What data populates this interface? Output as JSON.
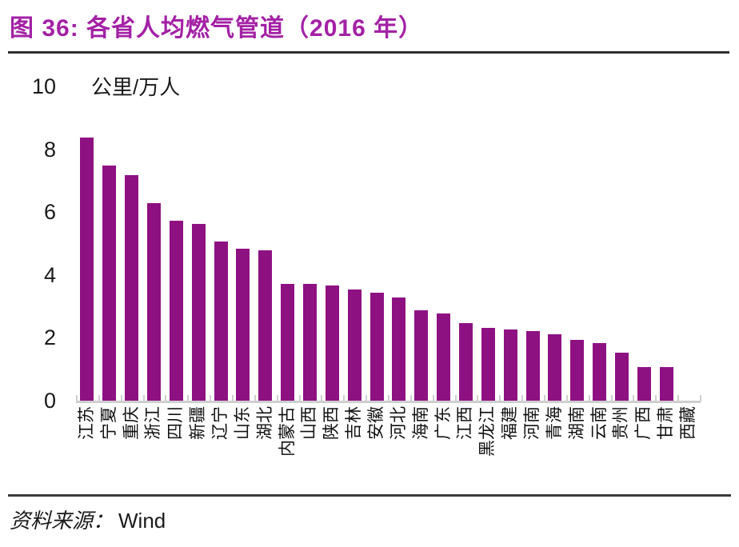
{
  "figure": {
    "title": "图 36:  各省人均燃气管道（2016 年）",
    "title_color": "#a321a5",
    "source_prefix": "资料来源：",
    "source_name": "Wind"
  },
  "chart_data": {
    "type": "bar",
    "title": "各省人均燃气管道（2016 年）",
    "unit_label": "公里/万人",
    "xlabel": "",
    "ylabel": "公里/万人",
    "ylim": [
      0,
      10
    ],
    "yticks": [
      0,
      2,
      4,
      6,
      8,
      10
    ],
    "grid": false,
    "legend": "none",
    "bar_color": "#8e1182",
    "axis_color": "#cfcfcf",
    "categories": [
      "江苏",
      "宁夏",
      "重庆",
      "浙江",
      "四川",
      "新疆",
      "辽宁",
      "山东",
      "湖北",
      "内蒙古",
      "山西",
      "陕西",
      "吉林",
      "安徽",
      "河北",
      "海南",
      "广东",
      "江西",
      "黑龙江",
      "福建",
      "河南",
      "青海",
      "湖南",
      "云南",
      "贵州",
      "广西",
      "甘肃",
      "西藏"
    ],
    "values": [
      8.4,
      7.5,
      7.2,
      6.3,
      5.75,
      5.65,
      5.1,
      4.85,
      4.8,
      3.75,
      3.75,
      3.7,
      3.55,
      3.45,
      3.3,
      2.9,
      2.8,
      2.5,
      2.35,
      2.3,
      2.25,
      2.15,
      1.95,
      1.85,
      1.55,
      1.1,
      1.1,
      0.02
    ]
  }
}
